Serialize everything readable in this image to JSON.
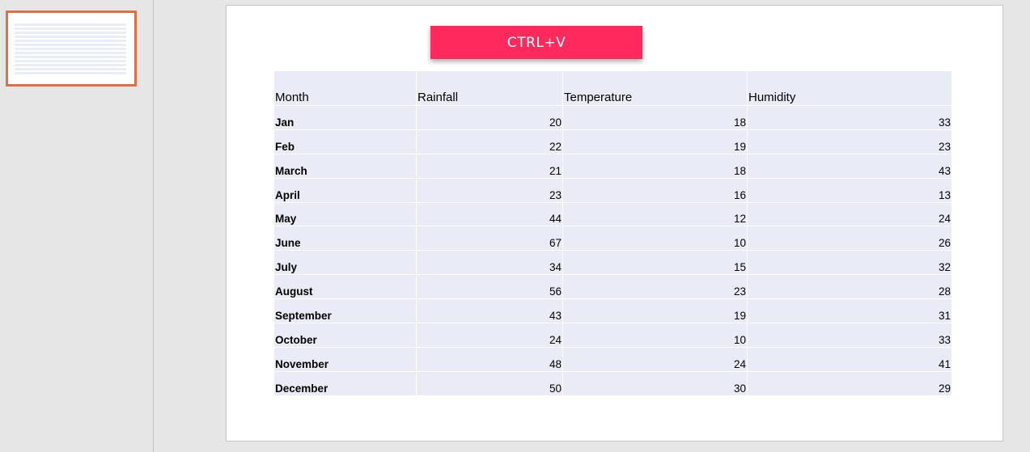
{
  "overlay": {
    "label": "CTRL+V"
  },
  "table": {
    "headers": [
      "Month",
      "Rainfall",
      "Temperature",
      "Humidity"
    ],
    "rows": [
      {
        "month": "Jan",
        "rainfall": "20",
        "temperature": "18",
        "humidity": "33"
      },
      {
        "month": "Feb",
        "rainfall": "22",
        "temperature": "19",
        "humidity": "23"
      },
      {
        "month": "March",
        "rainfall": "21",
        "temperature": "18",
        "humidity": "43"
      },
      {
        "month": "April",
        "rainfall": "23",
        "temperature": "16",
        "humidity": "13"
      },
      {
        "month": "May",
        "rainfall": "44",
        "temperature": "12",
        "humidity": "24"
      },
      {
        "month": "June",
        "rainfall": "67",
        "temperature": "10",
        "humidity": "26"
      },
      {
        "month": "July",
        "rainfall": "34",
        "temperature": "15",
        "humidity": "32"
      },
      {
        "month": "August",
        "rainfall": "56",
        "temperature": "23",
        "humidity": "28"
      },
      {
        "month": "September",
        "rainfall": "43",
        "temperature": "19",
        "humidity": "31"
      },
      {
        "month": "October",
        "rainfall": "24",
        "temperature": "10",
        "humidity": "33"
      },
      {
        "month": "November",
        "rainfall": "48",
        "temperature": "24",
        "humidity": "41"
      },
      {
        "month": "December",
        "rainfall": "50",
        "temperature": "30",
        "humidity": "29"
      }
    ]
  },
  "colors": {
    "overlay": "#fe2a5d",
    "thumbnail_selection": "#e0704a",
    "table_cell": "#e9ecf6"
  }
}
